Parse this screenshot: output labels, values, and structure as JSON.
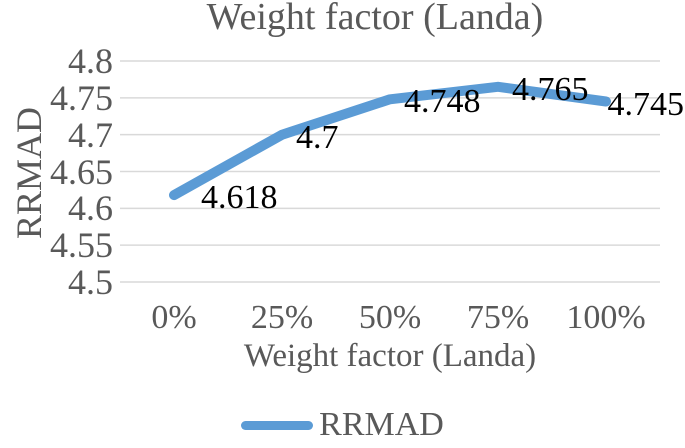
{
  "chart_data": {
    "type": "line",
    "title": "Weight factor (Landa)",
    "xlabel": "Weight factor (Landa)",
    "ylabel": "RRMAD",
    "categories": [
      "0%",
      "25%",
      "50%",
      "75%",
      "100%"
    ],
    "series": [
      {
        "name": "RRMAD",
        "values": [
          4.618,
          4.7,
          4.748,
          4.765,
          4.745
        ]
      }
    ],
    "point_labels": [
      "4.618",
      "4.7",
      "4.748",
      "4.765",
      "4.745"
    ],
    "y_tick_labels": [
      "4.8",
      "4.75",
      "4.7",
      "4.65",
      "4.6",
      "4.55",
      "4.5"
    ],
    "ylim": [
      4.5,
      4.8
    ],
    "grid": "horizontal gridlines only",
    "legend_position": "bottom center",
    "colors": {
      "line": "#5B9BD5",
      "grid": "#D9D9D9",
      "axis_text": "#595959",
      "title_text": "#595959",
      "data_label_text": "#000000",
      "background": "#FFFFFF"
    }
  }
}
